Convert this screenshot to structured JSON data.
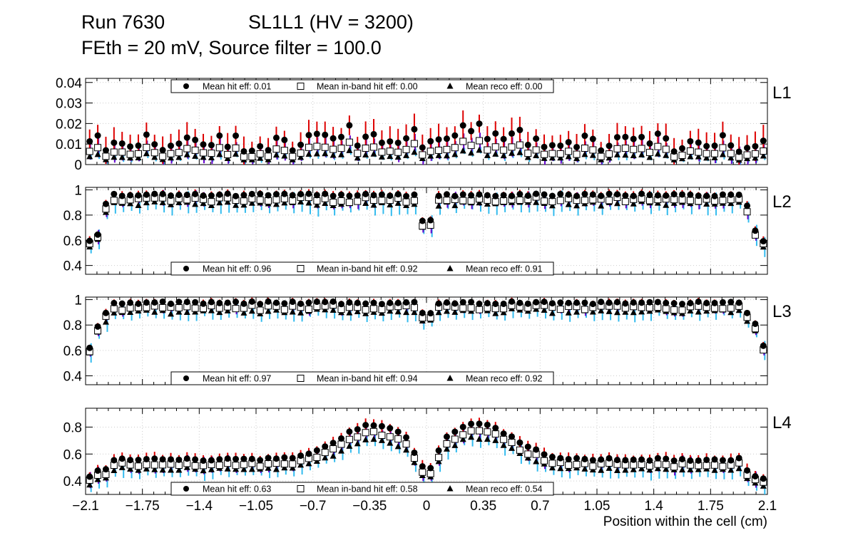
{
  "header": {
    "run": "Run 7630",
    "chamber": "SL1L1 (HV = 3200)",
    "settings": "FEth = 20 mV, Source filter = 100.0"
  },
  "colors": {
    "hit": "#000000",
    "hit_err": "#dd0000",
    "inband": "#ffffff",
    "inband_edge": "#000000",
    "inband_err": "#6600cc",
    "reco": "#000000",
    "reco_err": "#33bbee",
    "grid": "#cccccc"
  },
  "chart_data": [
    {
      "type": "scatter",
      "panel": "L1",
      "label": "L1",
      "ylim": [
        0,
        0.042
      ],
      "yticks": [
        "0",
        "0.01",
        "0.02",
        "0.03",
        "0.04"
      ],
      "ytick_values": [
        0,
        0.01,
        0.02,
        0.03,
        0.04
      ],
      "legend": {
        "placement": "top",
        "hit": "Mean hit  eff: 0.01",
        "inband": "Mean in-band hit eff: 0.00",
        "reco": "Mean reco eff: 0.00"
      },
      "profile": {
        "kind": "noise",
        "base": 0.0085,
        "amp": 0.009,
        "gap_depth": 0,
        "edge_start": 0,
        "edge_drop": 0,
        "inband_factor": 0.58,
        "reco_factor": 0.35,
        "err_hit": 0.006,
        "err_inband": 0.004,
        "err_reco": 0.002,
        "seed": 7
      }
    },
    {
      "type": "scatter",
      "panel": "L2",
      "label": "L2",
      "ylim": [
        0.33,
        1.02
      ],
      "yticks": [
        "0.4",
        "0.6",
        "0.8",
        "1"
      ],
      "ytick_values": [
        0.4,
        0.6,
        0.8,
        1.0
      ],
      "legend": {
        "placement": "bottom",
        "hit": "Mean hit  eff: 0.96",
        "inband": "Mean in-band hit eff: 0.92",
        "reco": "Mean reco eff: 0.91"
      },
      "profile": {
        "kind": "plateau",
        "base": 0.97,
        "amp": 0,
        "gap_depth": 0.2,
        "edge_start": 0.56,
        "edge_drop": 0.63,
        "inband_factor": 0.96,
        "reco_factor": 0.93,
        "err_hit": 0.03,
        "err_inband": 0.05,
        "err_reco": 0.07,
        "seed": 13
      }
    },
    {
      "type": "scatter",
      "panel": "L3",
      "label": "L3",
      "ylim": [
        0.33,
        1.02
      ],
      "yticks": [
        "0.4",
        "0.6",
        "0.8",
        "1"
      ],
      "ytick_values": [
        0.4,
        0.6,
        0.8,
        1.0
      ],
      "legend": {
        "placement": "bottom",
        "hit": "Mean hit  eff: 0.97",
        "inband": "Mean in-band hit eff: 0.94",
        "reco": "Mean reco eff: 0.92"
      },
      "profile": {
        "kind": "plateau",
        "base": 0.985,
        "amp": 0,
        "gap_depth": 0.08,
        "edge_start": 0.61,
        "edge_drop": 0.78,
        "inband_factor": 0.96,
        "reco_factor": 0.93,
        "err_hit": 0.025,
        "err_inband": 0.04,
        "err_reco": 0.06,
        "seed": 21
      }
    },
    {
      "type": "scatter",
      "panel": "L4",
      "label": "L4",
      "ylim": [
        0.3,
        0.94
      ],
      "yticks": [
        "0.4",
        "0.6",
        "0.8"
      ],
      "ytick_values": [
        0.4,
        0.6,
        0.8
      ],
      "legend": {
        "placement": "bottom",
        "hit": "Mean hit  eff: 0.63",
        "inband": "Mean in-band hit eff: 0.58",
        "reco": "Mean reco eff: 0.54"
      },
      "profile": {
        "kind": "hump",
        "base": 0.57,
        "amp": 0.26,
        "gap_depth": 0.2,
        "edge_start": 0.4,
        "edge_drop": 0.43,
        "inband_factor": 0.93,
        "reco_factor": 0.87,
        "err_hit": 0.04,
        "err_inband": 0.05,
        "err_reco": 0.06,
        "seed": 33
      }
    }
  ],
  "xaxis": {
    "xlim": [
      -2.1,
      2.1
    ],
    "ticks": [
      "−2.1",
      "−1.75",
      "−1.4",
      "−1.05",
      "−0.7",
      "−0.35",
      "0",
      "0.35",
      "0.7",
      "1.05",
      "1.4",
      "1.75",
      "2.1"
    ],
    "tick_values": [
      -2.1,
      -1.75,
      -1.4,
      -1.05,
      -0.7,
      -0.35,
      0,
      0.35,
      0.7,
      1.05,
      1.4,
      1.75,
      2.1
    ],
    "label": "Position within the cell (cm)",
    "n_bins": 84
  }
}
